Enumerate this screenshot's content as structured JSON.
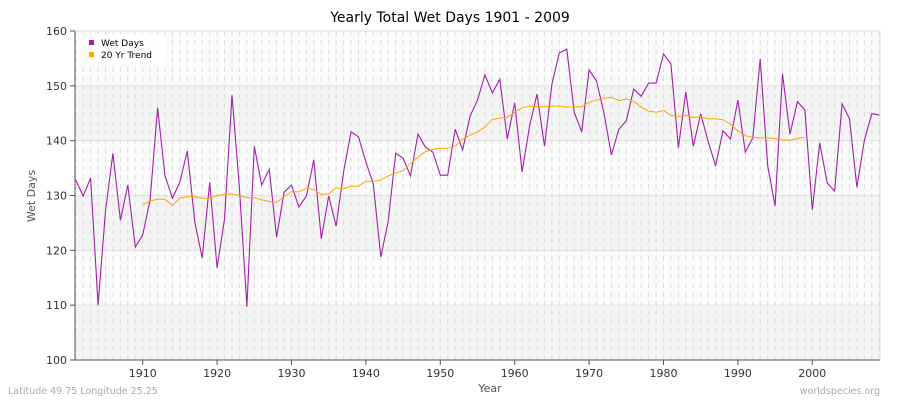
{
  "chart_data": {
    "type": "line",
    "title": "Yearly Total Wet Days 1901 - 2009",
    "xlabel": "Year",
    "ylabel": "Wet Days",
    "xlim": [
      1901,
      2009
    ],
    "ylim": [
      100,
      160
    ],
    "x_ticks": [
      1910,
      1920,
      1930,
      1940,
      1950,
      1960,
      1970,
      1980,
      1990,
      2000
    ],
    "y_ticks": [
      100,
      110,
      120,
      130,
      140,
      150,
      160
    ],
    "grid": true,
    "legend_position": "top-left",
    "series": [
      {
        "name": "Wet Days",
        "color": "#a020a8",
        "x_start": 1901,
        "values": [
          132.8,
          129.9,
          133.2,
          110.0,
          127.2,
          137.7,
          125.5,
          131.9,
          120.6,
          122.8,
          129.2,
          146.0,
          133.6,
          129.5,
          132.5,
          138.1,
          125.2,
          118.6,
          132.4,
          116.8,
          125.7,
          148.3,
          131.4,
          109.7,
          139.0,
          131.9,
          134.8,
          122.4,
          130.6,
          131.9,
          127.9,
          129.9,
          136.5,
          122.1,
          129.9,
          124.4,
          134.3,
          141.6,
          140.7,
          136.1,
          132.1,
          118.8,
          125.3,
          137.7,
          136.8,
          133.6,
          141.2,
          138.8,
          137.9,
          133.7,
          133.7,
          142.1,
          138.3,
          144.5,
          147.4,
          152.0,
          148.7,
          151.2,
          140.3,
          146.9,
          134.3,
          142.7,
          148.5,
          139.0,
          150.3,
          156.0,
          156.7,
          145.2,
          141.6,
          152.9,
          150.9,
          145.0,
          137.4,
          142.1,
          143.6,
          149.4,
          148.1,
          150.5,
          150.5,
          155.8,
          154.0,
          138.7,
          148.9,
          139.0,
          144.9,
          139.9,
          135.4,
          141.8,
          140.3,
          147.4,
          137.9,
          140.5,
          154.9,
          135.4,
          128.1,
          152.2,
          141.2,
          147.1,
          145.6,
          127.4,
          139.6,
          132.3,
          130.8,
          146.7,
          144.0,
          131.5,
          140.1,
          144.9,
          144.7
        ]
      },
      {
        "name": "20 Yr Trend",
        "color": "#ffa500",
        "x_start": 1910,
        "values": [
          128.3,
          129.0,
          129.3,
          129.3,
          128.2,
          129.5,
          129.8,
          129.8,
          129.5,
          129.5,
          130.0,
          130.2,
          130.3,
          130.0,
          129.6,
          129.6,
          129.2,
          128.9,
          128.8,
          129.8,
          130.7,
          130.7,
          131.3,
          131.1,
          130.2,
          130.3,
          131.4,
          131.2,
          131.7,
          131.7,
          132.6,
          132.6,
          132.8,
          133.6,
          134.1,
          134.5,
          135.8,
          137.0,
          138.0,
          138.4,
          138.6,
          138.6,
          139.0,
          140.3,
          141.0,
          141.6,
          142.5,
          143.9,
          144.1,
          144.3,
          145.2,
          146.0,
          146.3,
          146.2,
          146.2,
          146.3,
          146.3,
          146.1,
          146.2,
          146.2,
          147.0,
          147.4,
          147.7,
          147.9,
          147.3,
          147.6,
          147.2,
          146.1,
          145.4,
          145.2,
          145.5,
          144.6,
          144.4,
          144.6,
          144.2,
          144.4,
          144.0,
          144.0,
          143.8,
          143.0,
          141.8,
          140.9,
          140.6,
          140.5,
          140.5,
          140.4,
          140.1,
          140.1,
          140.4,
          140.6
        ]
      }
    ]
  },
  "footer": {
    "location": "Latitude 49.75 Longitude 25.25",
    "source": "worldspecies.org"
  }
}
